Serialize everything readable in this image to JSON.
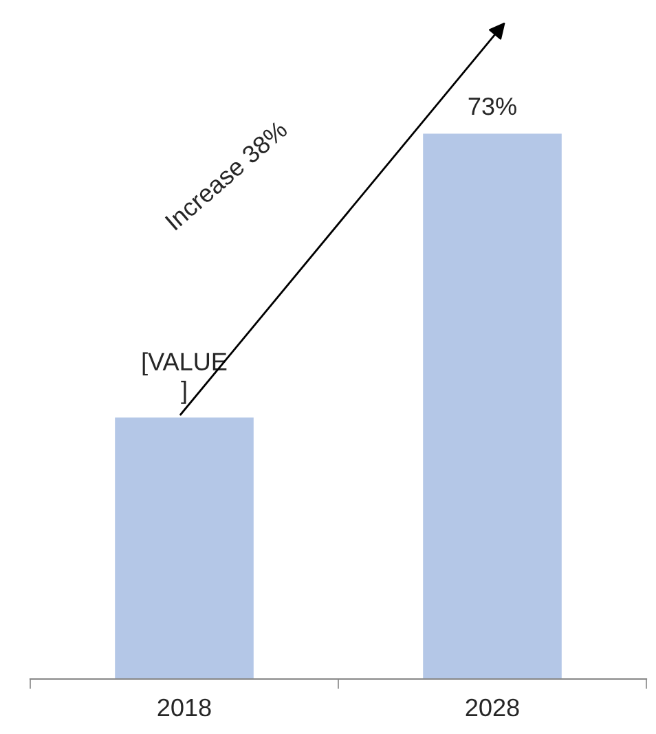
{
  "chart_data": {
    "type": "bar",
    "categories": [
      "2018",
      "2028"
    ],
    "values": [
      35,
      73
    ],
    "value_labels": [
      "[VALUE\n]",
      "73%"
    ],
    "color": "#b4c7e7",
    "annotations": [
      "Increase 38%"
    ],
    "grid": false,
    "legend": false
  }
}
